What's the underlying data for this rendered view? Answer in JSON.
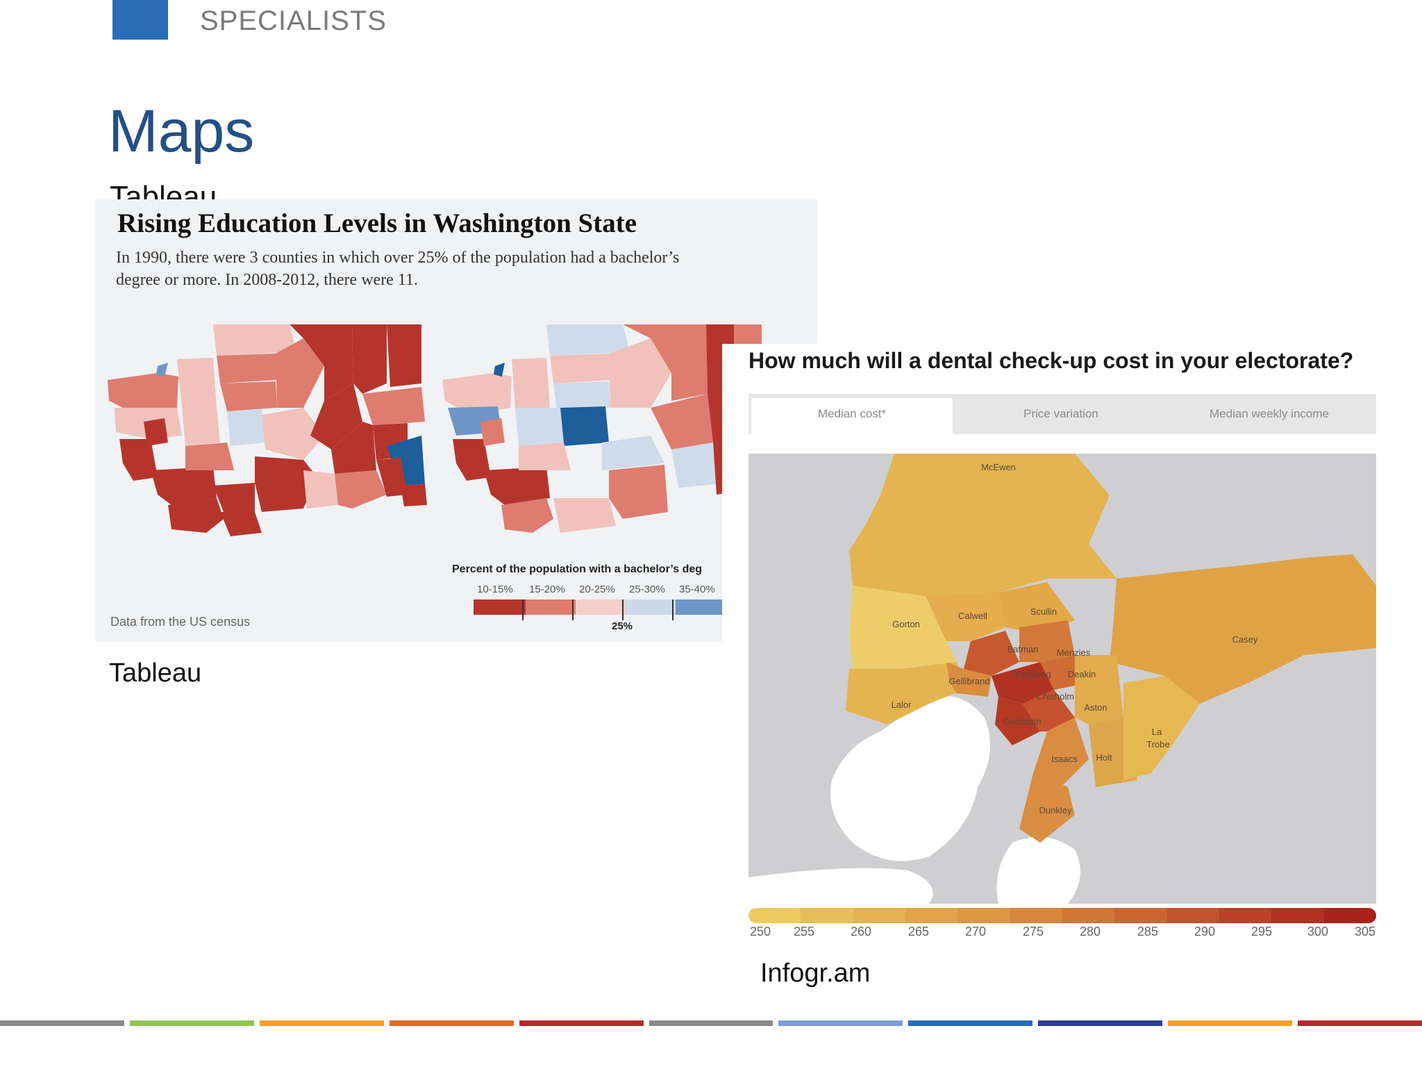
{
  "header": {
    "label": "SPECIALISTS"
  },
  "slide": {
    "title": "Maps",
    "clipped_label": "Tableau"
  },
  "tableau": {
    "title": "Rising Education Levels in Washington State",
    "description": "In 1990, there were 3 counties in which over 25% of the population had a bachelor’s degree or more. In 2008-2012,  there were 11.",
    "legend_title": "Percent of the population with a bachelor’s deg",
    "legend_labels": [
      "10-15%",
      "15-20%",
      "20-25%",
      "25-30%",
      "35-40%"
    ],
    "legend_colors": [
      "#b5352c",
      "#de7c70",
      "#f2cfcb",
      "#cdd9ea",
      "#6d97c6"
    ],
    "legend_marker": "25%",
    "source": "Data from the US census",
    "colors": {
      "dark_red": "#b5352c",
      "mid_red": "#d9695f",
      "light_red": "#f0c2bb",
      "light_blue": "#cfdbea",
      "dark_blue": "#1d5e9b",
      "mid_blue": "#6d97c6"
    },
    "caption": "Tableau"
  },
  "infogram": {
    "title": "How much will a dental check-up cost in your electorate?",
    "tabs": [
      "Median cost*",
      "Price variation",
      "Median weekly income"
    ],
    "active_tab": "Median cost*",
    "electorates": [
      "McEwen",
      "Calwell",
      "Scullin",
      "Gorton",
      "Casey",
      "Batman",
      "Menzies",
      "Kooyong",
      "Deakin",
      "Gellibrand",
      "Chisholm",
      "Lalor",
      "Aston",
      "Goldstein",
      "La",
      "Trobe",
      "Isaacs",
      "Holt",
      "Dunkley"
    ],
    "scale_labels": [
      "250",
      "255",
      "260",
      "265",
      "270",
      "275",
      "280",
      "285",
      "290",
      "295",
      "300",
      "305"
    ],
    "scale_colors": [
      "#ebcb5c",
      "#e8bf55",
      "#e5b24f",
      "#e1a548",
      "#dd9642",
      "#d8873c",
      "#d27636",
      "#cb6430",
      "#c4522b",
      "#bc4126",
      "#b33121",
      "#a9221c"
    ],
    "caption": "Infogr.am"
  },
  "stripe_colors": [
    "#8a8a8a",
    "#8dc556",
    "#f0a12a",
    "#e06a2d",
    "#b8282e",
    "#8a8a8a",
    "#7d9fd3",
    "#2a6db6",
    "#2c3f8f",
    "#f0a12a",
    "#b8282e"
  ]
}
